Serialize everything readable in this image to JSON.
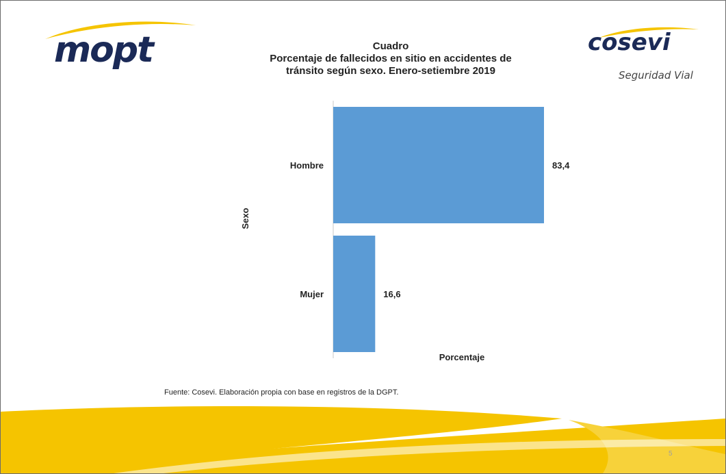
{
  "header": {
    "left_logo_text": "mopt",
    "right_logo_text": "cosevi",
    "right_logo_subtitle": "Seguridad Vial"
  },
  "title": {
    "line1": "Cuadro",
    "line2": "Porcentaje de fallecidos en sitio en accidentes de",
    "line3": "tránsito según sexo. Enero-setiembre 2019"
  },
  "chart_data": {
    "type": "bar",
    "orientation": "horizontal",
    "categories": [
      "Hombre",
      "Mujer"
    ],
    "values": [
      83.4,
      16.6
    ],
    "value_labels": [
      "83,4",
      "16,6"
    ],
    "title": "Porcentaje de fallecidos en sitio en accidentes de tránsito según sexo. Enero-setiembre 2019",
    "xlabel": "Porcentaje",
    "ylabel": "Sexo",
    "xlim": [
      0,
      100
    ],
    "grid": false,
    "legend": "none",
    "bar_color": "#5b9bd5"
  },
  "footer": {
    "source": "Fuente: Cosevi. Elaboración propia con base en registros de la DGPT.",
    "page_number": "5"
  },
  "colors": {
    "brand_navy": "#1b2a57",
    "yellow": "#f5c400",
    "bar": "#5b9bd5"
  }
}
